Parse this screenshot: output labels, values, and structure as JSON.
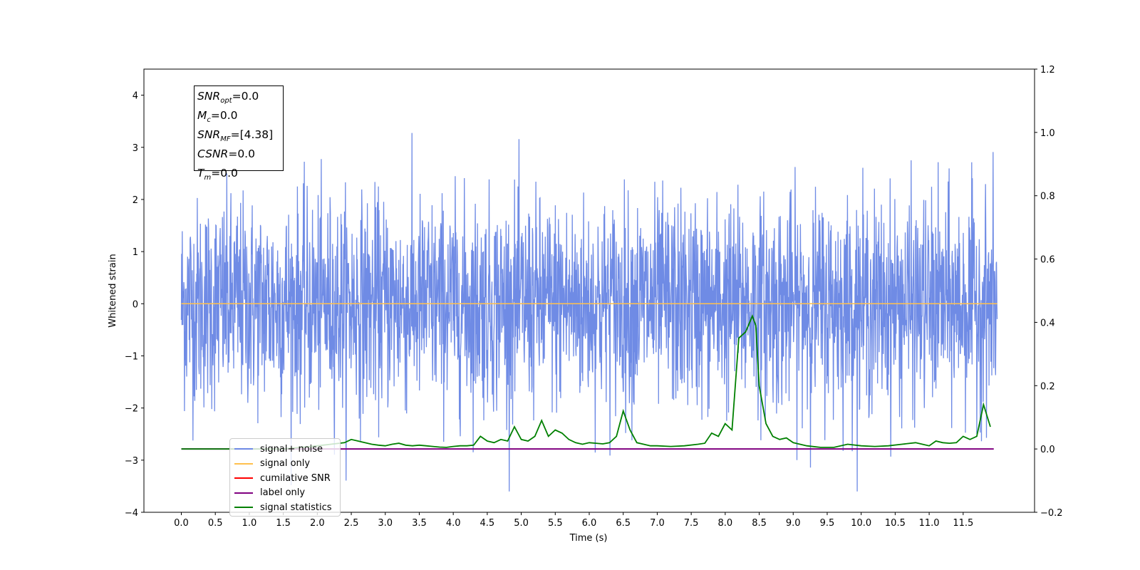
{
  "chart_data": {
    "type": "line",
    "xlabel": "Time (s)",
    "ylabel_left": "Whitened strain",
    "ylabel_right": "",
    "xlim": [
      -0.55,
      12.55
    ],
    "ylim_left": [
      -4,
      4.5
    ],
    "ylim_right": [
      -0.2,
      1.2
    ],
    "x_ticks": [
      "0.0",
      "0.5",
      "1.0",
      "1.5",
      "2.0",
      "2.5",
      "3.0",
      "3.5",
      "4.0",
      "4.5",
      "5.0",
      "5.5",
      "6.0",
      "6.5",
      "7.0",
      "7.5",
      "8.0",
      "8.5",
      "9.0",
      "9.5",
      "10.0",
      "10.5",
      "11.0",
      "11.5"
    ],
    "y_ticks_left": [
      "4",
      "3",
      "2",
      "1",
      "0",
      "−1",
      "−2",
      "−3",
      "−4"
    ],
    "y_ticks_right": [
      "1.2",
      "1.0",
      "0.8",
      "0.6",
      "0.4",
      "0.2",
      "0.0",
      "−0.2"
    ],
    "grid": false,
    "legend_position": "lower-left",
    "series": [
      {
        "name": "signal+ noise",
        "axis": "left",
        "color": "#6f8be5",
        "description_note": "",
        "x_range": [
          0.0,
          12.0
        ],
        "mean": 0.0,
        "std": 1.0,
        "max_observed": 4.1,
        "min_observed": -3.6
      },
      {
        "name": "signal only",
        "axis": "left",
        "color": "#ffc04d",
        "x": [
          0.0,
          12.0
        ],
        "values": [
          0.0,
          0.0
        ]
      },
      {
        "name": "cumilative SNR",
        "axis": "left",
        "color": "#ff0000",
        "x": [],
        "values": []
      },
      {
        "name": "label only",
        "axis": "right",
        "color": "#800080",
        "x": [
          0.0,
          11.95
        ],
        "values": [
          0.0,
          0.0
        ]
      },
      {
        "name": "signal statistics",
        "axis": "right",
        "color": "#008000",
        "x": [
          0.0,
          0.5,
          1.0,
          1.5,
          2.0,
          2.2,
          2.4,
          2.5,
          2.6,
          2.7,
          2.8,
          2.9,
          3.0,
          3.1,
          3.2,
          3.3,
          3.4,
          3.5,
          3.6,
          3.7,
          3.8,
          3.9,
          4.0,
          4.1,
          4.2,
          4.3,
          4.4,
          4.5,
          4.6,
          4.7,
          4.8,
          4.9,
          5.0,
          5.1,
          5.2,
          5.3,
          5.4,
          5.5,
          5.6,
          5.7,
          5.8,
          5.9,
          6.0,
          6.1,
          6.2,
          6.3,
          6.4,
          6.5,
          6.6,
          6.7,
          6.8,
          6.9,
          7.0,
          7.2,
          7.4,
          7.6,
          7.7,
          7.8,
          7.9,
          8.0,
          8.1,
          8.2,
          8.3,
          8.4,
          8.45,
          8.5,
          8.6,
          8.7,
          8.8,
          8.9,
          9.0,
          9.1,
          9.2,
          9.4,
          9.6,
          9.8,
          10.0,
          10.2,
          10.4,
          10.6,
          10.8,
          10.9,
          11.0,
          11.1,
          11.2,
          11.3,
          11.4,
          11.5,
          11.6,
          11.7,
          11.8,
          11.9
        ],
        "values": [
          0.0,
          0.0,
          0.0,
          0.0,
          0.01,
          0.015,
          0.02,
          0.03,
          0.025,
          0.02,
          0.015,
          0.012,
          0.01,
          0.015,
          0.018,
          0.012,
          0.01,
          0.012,
          0.01,
          0.008,
          0.006,
          0.005,
          0.008,
          0.01,
          0.01,
          0.012,
          0.04,
          0.025,
          0.02,
          0.03,
          0.025,
          0.07,
          0.03,
          0.025,
          0.04,
          0.09,
          0.04,
          0.06,
          0.05,
          0.03,
          0.02,
          0.015,
          0.02,
          0.018,
          0.016,
          0.02,
          0.04,
          0.12,
          0.06,
          0.02,
          0.015,
          0.01,
          0.01,
          0.008,
          0.01,
          0.015,
          0.018,
          0.05,
          0.04,
          0.08,
          0.06,
          0.35,
          0.37,
          0.42,
          0.39,
          0.2,
          0.08,
          0.04,
          0.03,
          0.035,
          0.02,
          0.015,
          0.01,
          0.005,
          0.005,
          0.015,
          0.01,
          0.008,
          0.01,
          0.015,
          0.02,
          0.015,
          0.01,
          0.025,
          0.02,
          0.018,
          0.02,
          0.04,
          0.03,
          0.04,
          0.14,
          0.07
        ]
      }
    ]
  },
  "info_box": {
    "lines": [
      {
        "sym": "SNR",
        "sub": "opt",
        "value": "=0.0"
      },
      {
        "sym": "M",
        "sub": "c",
        "value": "=0.0"
      },
      {
        "sym": "SNR",
        "sub": "MF",
        "value": "=[4.38]"
      },
      {
        "sym": "CSNR",
        "sub": "",
        "value": "=0.0"
      },
      {
        "sym": "T",
        "sub": "m",
        "value": "=0.0"
      }
    ]
  },
  "legend": {
    "items": [
      {
        "label": "signal+ noise",
        "color": "#6f8be5"
      },
      {
        "label": "signal only",
        "color": "#ffc04d"
      },
      {
        "label": "cumilative SNR",
        "color": "#ff0000"
      },
      {
        "label": "label only",
        "color": "#800080"
      },
      {
        "label": "signal statistics",
        "color": "#008000"
      }
    ]
  }
}
